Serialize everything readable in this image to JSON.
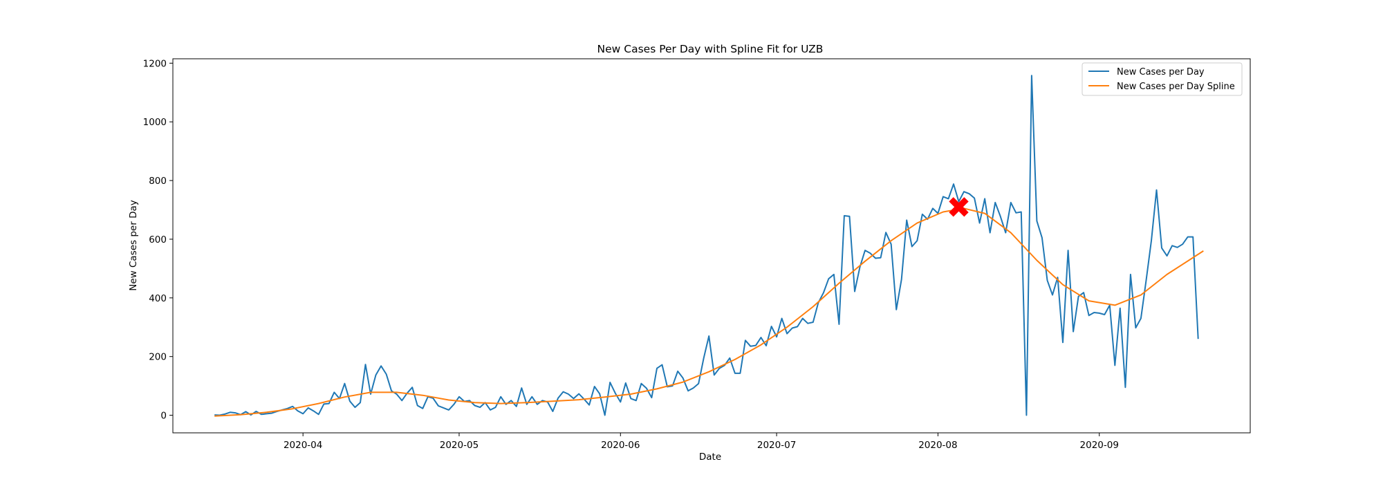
{
  "chart_data": {
    "type": "line",
    "title": "New Cases Per Day with Spline Fit for UZB",
    "xlabel": "Date",
    "ylabel": "New Cases per Day",
    "x_ticks": [
      "2020-04",
      "2020-05",
      "2020-06",
      "2020-07",
      "2020-08",
      "2020-09"
    ],
    "y_ticks": [
      0,
      200,
      400,
      600,
      800,
      1000,
      1200
    ],
    "xlim": [
      "2020-03-07",
      "2020-09-30"
    ],
    "ylim": [
      -60,
      1215
    ],
    "grid": false,
    "legend_position": "top-right",
    "series": [
      {
        "name": "New Cases per Day",
        "color": "#1f77b4",
        "points": [
          [
            "2020-03-15",
            1
          ],
          [
            "2020-03-16",
            0
          ],
          [
            "2020-03-17",
            4
          ],
          [
            "2020-03-18",
            10
          ],
          [
            "2020-03-19",
            8
          ],
          [
            "2020-03-20",
            2
          ],
          [
            "2020-03-21",
            12
          ],
          [
            "2020-03-22",
            1
          ],
          [
            "2020-03-23",
            13
          ],
          [
            "2020-03-24",
            3
          ],
          [
            "2020-03-25",
            5
          ],
          [
            "2020-03-26",
            7
          ],
          [
            "2020-03-27",
            13
          ],
          [
            "2020-03-28",
            18
          ],
          [
            "2020-03-29",
            23
          ],
          [
            "2020-03-30",
            30
          ],
          [
            "2020-03-31",
            15
          ],
          [
            "2020-04-01",
            5
          ],
          [
            "2020-04-02",
            25
          ],
          [
            "2020-04-03",
            15
          ],
          [
            "2020-04-04",
            3
          ],
          [
            "2020-04-05",
            38
          ],
          [
            "2020-04-06",
            40
          ],
          [
            "2020-04-07",
            78
          ],
          [
            "2020-04-08",
            57
          ],
          [
            "2020-04-09",
            108
          ],
          [
            "2020-04-10",
            48
          ],
          [
            "2020-04-11",
            27
          ],
          [
            "2020-04-12",
            43
          ],
          [
            "2020-04-13",
            173
          ],
          [
            "2020-04-14",
            72
          ],
          [
            "2020-04-15",
            137
          ],
          [
            "2020-04-16",
            168
          ],
          [
            "2020-04-17",
            140
          ],
          [
            "2020-04-18",
            83
          ],
          [
            "2020-04-19",
            72
          ],
          [
            "2020-04-20",
            50
          ],
          [
            "2020-04-21",
            75
          ],
          [
            "2020-04-22",
            95
          ],
          [
            "2020-04-23",
            33
          ],
          [
            "2020-04-24",
            23
          ],
          [
            "2020-04-25",
            63
          ],
          [
            "2020-04-26",
            58
          ],
          [
            "2020-04-27",
            32
          ],
          [
            "2020-04-28",
            25
          ],
          [
            "2020-04-29",
            18
          ],
          [
            "2020-04-30",
            37
          ],
          [
            "2020-05-01",
            63
          ],
          [
            "2020-05-02",
            47
          ],
          [
            "2020-05-03",
            50
          ],
          [
            "2020-05-04",
            33
          ],
          [
            "2020-05-05",
            27
          ],
          [
            "2020-05-06",
            43
          ],
          [
            "2020-05-07",
            18
          ],
          [
            "2020-05-08",
            27
          ],
          [
            "2020-05-09",
            63
          ],
          [
            "2020-05-10",
            37
          ],
          [
            "2020-05-11",
            50
          ],
          [
            "2020-05-12",
            30
          ],
          [
            "2020-05-13",
            93
          ],
          [
            "2020-05-14",
            37
          ],
          [
            "2020-05-15",
            63
          ],
          [
            "2020-05-16",
            37
          ],
          [
            "2020-05-17",
            50
          ],
          [
            "2020-05-18",
            45
          ],
          [
            "2020-05-19",
            13
          ],
          [
            "2020-05-20",
            58
          ],
          [
            "2020-05-21",
            80
          ],
          [
            "2020-05-22",
            72
          ],
          [
            "2020-05-23",
            57
          ],
          [
            "2020-05-24",
            73
          ],
          [
            "2020-05-25",
            55
          ],
          [
            "2020-05-26",
            35
          ],
          [
            "2020-05-27",
            98
          ],
          [
            "2020-05-28",
            73
          ],
          [
            "2020-05-29",
            0
          ],
          [
            "2020-05-30",
            112
          ],
          [
            "2020-05-31",
            75
          ],
          [
            "2020-06-01",
            45
          ],
          [
            "2020-06-02",
            110
          ],
          [
            "2020-06-03",
            57
          ],
          [
            "2020-06-04",
            50
          ],
          [
            "2020-06-05",
            108
          ],
          [
            "2020-06-06",
            92
          ],
          [
            "2020-06-07",
            60
          ],
          [
            "2020-06-08",
            160
          ],
          [
            "2020-06-09",
            172
          ],
          [
            "2020-06-10",
            97
          ],
          [
            "2020-06-11",
            100
          ],
          [
            "2020-06-12",
            150
          ],
          [
            "2020-06-13",
            127
          ],
          [
            "2020-06-14",
            83
          ],
          [
            "2020-06-15",
            93
          ],
          [
            "2020-06-16",
            108
          ],
          [
            "2020-06-17",
            195
          ],
          [
            "2020-06-18",
            270
          ],
          [
            "2020-06-19",
            137
          ],
          [
            "2020-06-20",
            160
          ],
          [
            "2020-06-21",
            170
          ],
          [
            "2020-06-22",
            195
          ],
          [
            "2020-06-23",
            143
          ],
          [
            "2020-06-24",
            143
          ],
          [
            "2020-06-25",
            255
          ],
          [
            "2020-06-26",
            235
          ],
          [
            "2020-06-27",
            238
          ],
          [
            "2020-06-28",
            265
          ],
          [
            "2020-06-29",
            237
          ],
          [
            "2020-06-30",
            303
          ],
          [
            "2020-07-01",
            267
          ],
          [
            "2020-07-02",
            330
          ],
          [
            "2020-07-03",
            278
          ],
          [
            "2020-07-04",
            297
          ],
          [
            "2020-07-05",
            302
          ],
          [
            "2020-07-06",
            330
          ],
          [
            "2020-07-07",
            313
          ],
          [
            "2020-07-08",
            317
          ],
          [
            "2020-07-09",
            383
          ],
          [
            "2020-07-10",
            417
          ],
          [
            "2020-07-11",
            465
          ],
          [
            "2020-07-12",
            480
          ],
          [
            "2020-07-13",
            310
          ],
          [
            "2020-07-14",
            680
          ],
          [
            "2020-07-15",
            678
          ],
          [
            "2020-07-16",
            422
          ],
          [
            "2020-07-17",
            505
          ],
          [
            "2020-07-18",
            562
          ],
          [
            "2020-07-19",
            552
          ],
          [
            "2020-07-20",
            535
          ],
          [
            "2020-07-21",
            537
          ],
          [
            "2020-07-22",
            623
          ],
          [
            "2020-07-23",
            583
          ],
          [
            "2020-07-24",
            360
          ],
          [
            "2020-07-25",
            463
          ],
          [
            "2020-07-26",
            665
          ],
          [
            "2020-07-27",
            575
          ],
          [
            "2020-07-28",
            595
          ],
          [
            "2020-07-29",
            685
          ],
          [
            "2020-07-30",
            668
          ],
          [
            "2020-07-31",
            705
          ],
          [
            "2020-08-01",
            688
          ],
          [
            "2020-08-02",
            745
          ],
          [
            "2020-08-03",
            738
          ],
          [
            "2020-08-04",
            788
          ],
          [
            "2020-08-05",
            728
          ],
          [
            "2020-08-06",
            762
          ],
          [
            "2020-08-07",
            755
          ],
          [
            "2020-08-08",
            740
          ],
          [
            "2020-08-09",
            655
          ],
          [
            "2020-08-10",
            738
          ],
          [
            "2020-08-11",
            622
          ],
          [
            "2020-08-12",
            725
          ],
          [
            "2020-08-13",
            678
          ],
          [
            "2020-08-14",
            622
          ],
          [
            "2020-08-15",
            725
          ],
          [
            "2020-08-16",
            690
          ],
          [
            "2020-08-17",
            693
          ],
          [
            "2020-08-18",
            0
          ],
          [
            "2020-08-19",
            1158
          ],
          [
            "2020-08-20",
            662
          ],
          [
            "2020-08-21",
            605
          ],
          [
            "2020-08-22",
            460
          ],
          [
            "2020-08-23",
            410
          ],
          [
            "2020-08-24",
            470
          ],
          [
            "2020-08-25",
            248
          ],
          [
            "2020-08-26",
            562
          ],
          [
            "2020-08-27",
            285
          ],
          [
            "2020-08-28",
            405
          ],
          [
            "2020-08-29",
            418
          ],
          [
            "2020-08-30",
            340
          ],
          [
            "2020-08-31",
            350
          ],
          [
            "2020-09-01",
            348
          ],
          [
            "2020-09-02",
            343
          ],
          [
            "2020-09-03",
            375
          ],
          [
            "2020-09-04",
            170
          ],
          [
            "2020-09-05",
            365
          ],
          [
            "2020-09-06",
            95
          ],
          [
            "2020-09-07",
            480
          ],
          [
            "2020-09-08",
            298
          ],
          [
            "2020-09-09",
            330
          ],
          [
            "2020-09-10",
            460
          ],
          [
            "2020-09-11",
            595
          ],
          [
            "2020-09-12",
            768
          ],
          [
            "2020-09-13",
            570
          ],
          [
            "2020-09-14",
            543
          ],
          [
            "2020-09-15",
            578
          ],
          [
            "2020-09-16",
            572
          ],
          [
            "2020-09-17",
            583
          ],
          [
            "2020-09-18",
            608
          ],
          [
            "2020-09-19",
            608
          ],
          [
            "2020-09-20",
            260
          ]
        ]
      },
      {
        "name": "New Cases per Day Spline",
        "color": "#ff7f0e",
        "points": [
          [
            "2020-03-15",
            -3
          ],
          [
            "2020-03-20",
            2
          ],
          [
            "2020-03-25",
            10
          ],
          [
            "2020-03-30",
            22
          ],
          [
            "2020-04-04",
            40
          ],
          [
            "2020-04-09",
            62
          ],
          [
            "2020-04-14",
            78
          ],
          [
            "2020-04-19",
            78
          ],
          [
            "2020-04-24",
            68
          ],
          [
            "2020-04-29",
            52
          ],
          [
            "2020-05-04",
            43
          ],
          [
            "2020-05-09",
            40
          ],
          [
            "2020-05-14",
            43
          ],
          [
            "2020-05-19",
            48
          ],
          [
            "2020-05-24",
            53
          ],
          [
            "2020-05-29",
            62
          ],
          [
            "2020-06-03",
            72
          ],
          [
            "2020-06-08",
            90
          ],
          [
            "2020-06-13",
            113
          ],
          [
            "2020-06-18",
            148
          ],
          [
            "2020-06-23",
            190
          ],
          [
            "2020-06-28",
            240
          ],
          [
            "2020-07-03",
            300
          ],
          [
            "2020-07-08",
            370
          ],
          [
            "2020-07-13",
            450
          ],
          [
            "2020-07-18",
            525
          ],
          [
            "2020-07-23",
            595
          ],
          [
            "2020-07-28",
            655
          ],
          [
            "2020-08-02",
            693
          ],
          [
            "2020-08-06",
            705
          ],
          [
            "2020-08-10",
            688
          ],
          [
            "2020-08-15",
            622
          ],
          [
            "2020-08-20",
            528
          ],
          [
            "2020-08-25",
            445
          ],
          [
            "2020-08-30",
            390
          ],
          [
            "2020-09-04",
            375
          ],
          [
            "2020-09-09",
            410
          ],
          [
            "2020-09-14",
            480
          ],
          [
            "2020-09-21",
            560
          ]
        ]
      }
    ],
    "marker": {
      "x": "2020-08-05",
      "y": 710,
      "color": "#ff0000",
      "shape": "X"
    }
  }
}
